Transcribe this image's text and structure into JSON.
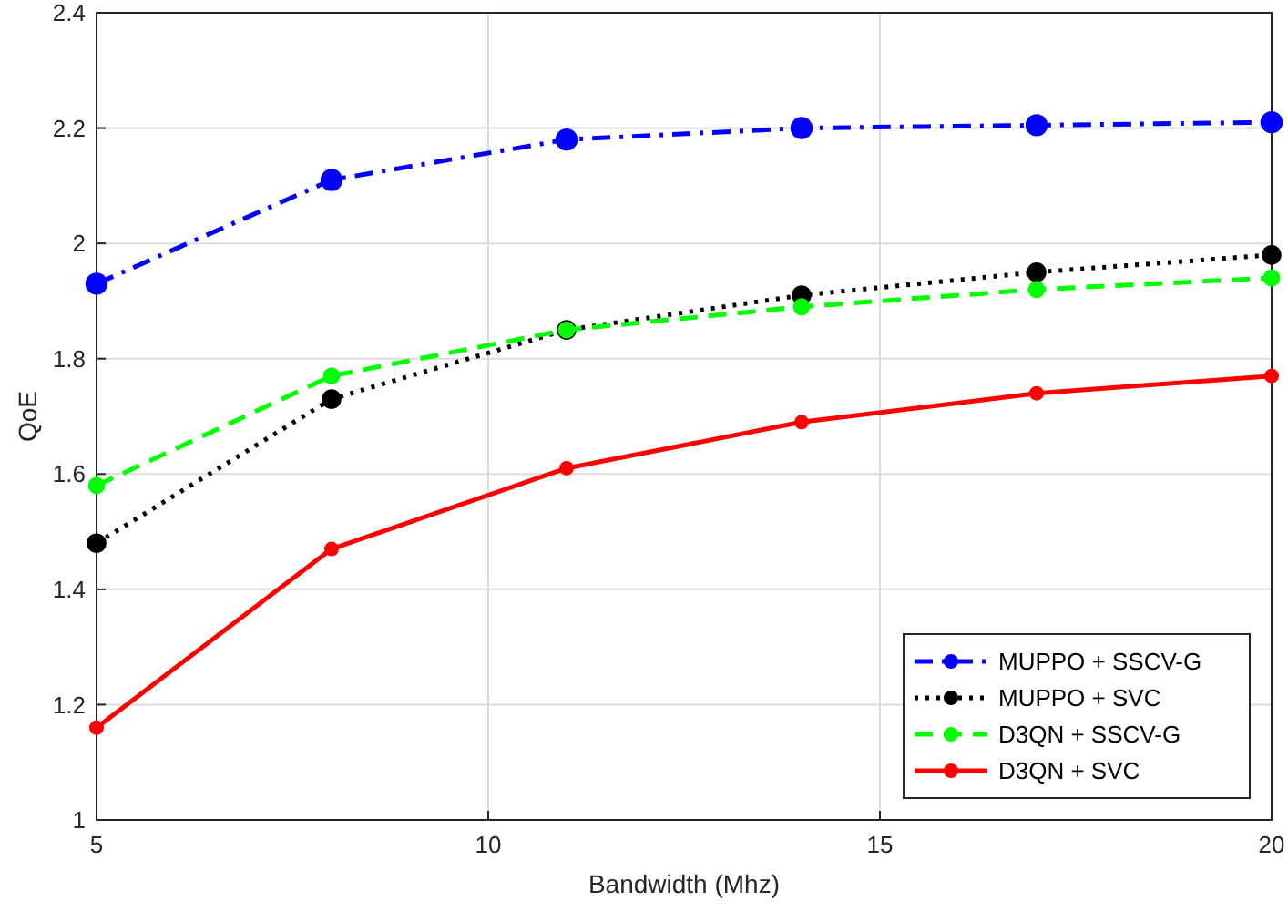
{
  "chart_data": {
    "type": "line",
    "xlabel": "Bandwidth (Mhz)",
    "ylabel": "QoE",
    "x": [
      5,
      8,
      11,
      14,
      17,
      20
    ],
    "xlim": [
      5,
      20
    ],
    "xticks": [
      5,
      10,
      15,
      20
    ],
    "ylim": [
      1,
      2.4
    ],
    "yticks": [
      1,
      1.2,
      1.4,
      1.6,
      1.8,
      2,
      2.2,
      2.4
    ],
    "grid": true,
    "legend": "bottom right",
    "marker": "circle",
    "series": [
      {
        "name": "MUPPO + SSCV-G",
        "color": "#0000ff",
        "line_style": "dashdot",
        "values": [
          1.93,
          2.11,
          2.18,
          2.2,
          2.205,
          2.21
        ]
      },
      {
        "name": "MUPPO + SVC",
        "color": "#000000",
        "line_style": "dotted",
        "values": [
          1.48,
          1.73,
          1.85,
          1.91,
          1.95,
          1.98
        ]
      },
      {
        "name": "D3QN + SSCV-G",
        "color": "#00ff00",
        "line_style": "dashed",
        "values": [
          1.58,
          1.77,
          1.85,
          1.89,
          1.92,
          1.94
        ]
      },
      {
        "name": "D3QN + SVC",
        "color": "#ff0000",
        "line_style": "solid",
        "values": [
          1.16,
          1.47,
          1.61,
          1.69,
          1.74,
          1.77
        ]
      }
    ]
  }
}
